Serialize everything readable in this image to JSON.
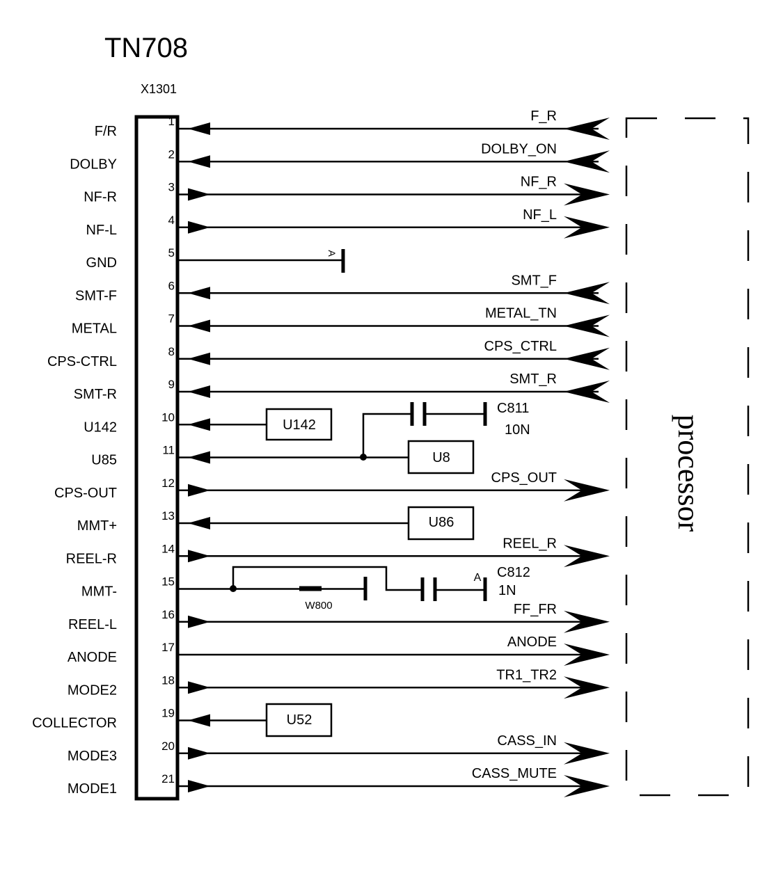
{
  "title": "TN708",
  "connector": "X1301",
  "processor": "processor",
  "pins": [
    {
      "number": "1",
      "label": "F/R",
      "signal": "F_R",
      "direction": "in"
    },
    {
      "number": "2",
      "label": "DOLBY",
      "signal": "DOLBY_ON",
      "direction": "in"
    },
    {
      "number": "3",
      "label": "NF-R",
      "signal": "NF_R",
      "direction": "out"
    },
    {
      "number": "4",
      "label": "NF-L",
      "signal": "NF_L",
      "direction": "out"
    },
    {
      "number": "5",
      "label": "GND",
      "direction": "none"
    },
    {
      "number": "6",
      "label": "SMT-F",
      "signal": "SMT_F",
      "direction": "in"
    },
    {
      "number": "7",
      "label": "METAL",
      "signal": "METAL_TN",
      "direction": "in"
    },
    {
      "number": "8",
      "label": "CPS-CTRL",
      "signal": "CPS_CTRL",
      "direction": "in"
    },
    {
      "number": "9",
      "label": "SMT-R",
      "signal": "SMT_R",
      "direction": "in"
    },
    {
      "number": "10",
      "label": "U142",
      "direction": "in"
    },
    {
      "number": "11",
      "label": "U85",
      "direction": "in"
    },
    {
      "number": "12",
      "label": "CPS-OUT",
      "signal": "CPS_OUT",
      "direction": "out"
    },
    {
      "number": "13",
      "label": "MMT+",
      "direction": "in"
    },
    {
      "number": "14",
      "label": "REEL-R",
      "signal": "REEL_R",
      "direction": "out"
    },
    {
      "number": "15",
      "label": "MMT-",
      "direction": "none"
    },
    {
      "number": "16",
      "label": "REEL-L",
      "signal": "FF_FR",
      "direction": "out"
    },
    {
      "number": "17",
      "label": "ANODE",
      "signal": "ANODE",
      "direction": "out"
    },
    {
      "number": "18",
      "label": "MODE2",
      "signal": "TR1_TR2",
      "direction": "out"
    },
    {
      "number": "19",
      "label": "COLLECTOR",
      "direction": "in"
    },
    {
      "number": "20",
      "label": "MODE3",
      "signal": "CASS_IN",
      "direction": "out"
    },
    {
      "number": "21",
      "label": "MODE1",
      "signal": "CASS_MUTE",
      "direction": "out"
    }
  ],
  "components": {
    "u142": "U142",
    "u8": "U8",
    "u86": "U86",
    "u52": "U52",
    "c811": "C811",
    "c811_value": "10N",
    "c812": "C812",
    "c812_value": "1N",
    "w800": "W800",
    "ground_5": "A",
    "ground_15": "A"
  }
}
